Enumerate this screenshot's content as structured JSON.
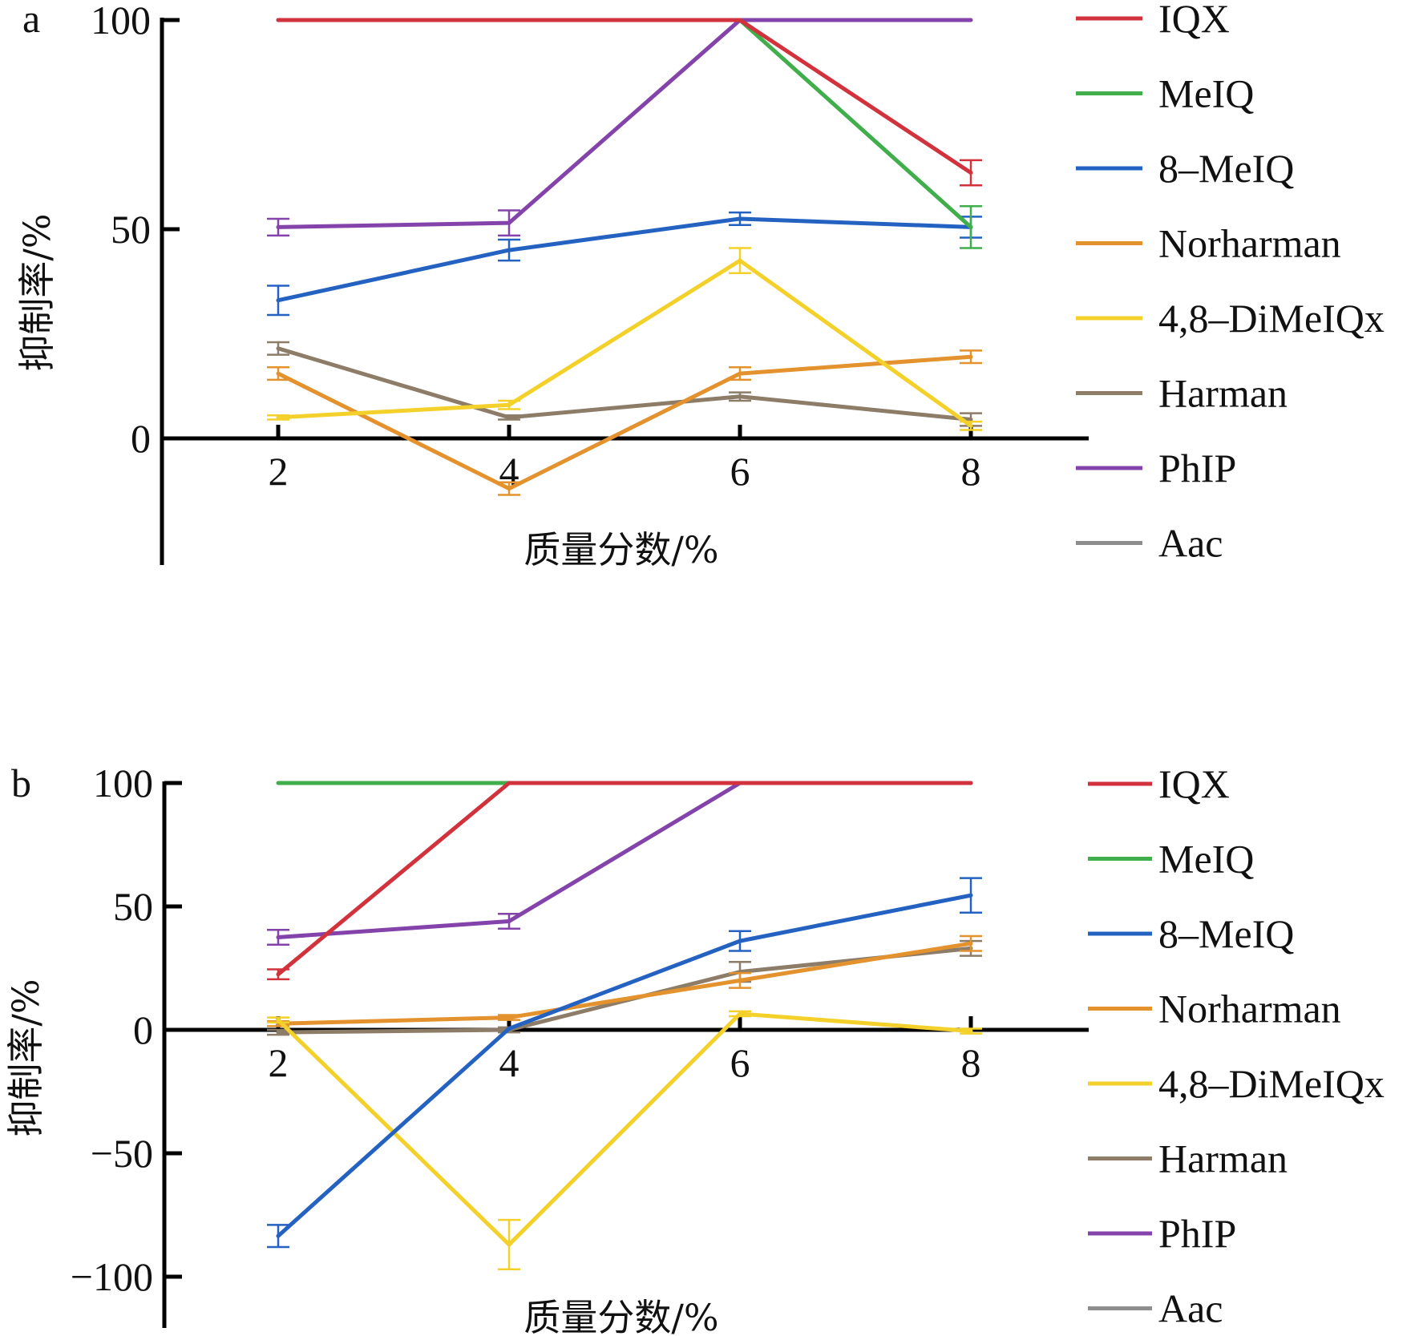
{
  "chart_data": [
    {
      "panel": "a",
      "type": "line",
      "xlabel": "质量分数/%",
      "ylabel": "抑制率/%",
      "x": [
        2,
        4,
        6,
        8
      ],
      "x_ticks": [
        "2",
        "4",
        "6",
        "8"
      ],
      "y_ticks": [
        {
          "value": 100,
          "label": "100"
        },
        {
          "value": 50,
          "label": "50"
        },
        {
          "value": 0,
          "label": "0"
        }
      ],
      "ylim": [
        -27,
        100
      ],
      "legend_position": "right",
      "grid": false,
      "series": [
        {
          "name": "IQX",
          "color": "#d2323c",
          "values": [
            100,
            100,
            100,
            63.5
          ],
          "errors": [
            0,
            0,
            0,
            3
          ]
        },
        {
          "name": "MeIQ",
          "color": "#3fae4b",
          "values": [
            100,
            100,
            100,
            50.5
          ],
          "errors": [
            0,
            0,
            0,
            5
          ]
        },
        {
          "name": "8–MeIQ",
          "color": "#2462c2",
          "values": [
            33,
            45,
            52.5,
            50.5
          ],
          "errors": [
            3.5,
            2.5,
            1.5,
            2.5
          ]
        },
        {
          "name": "Norharman",
          "color": "#e3922e",
          "values": [
            15.5,
            -12,
            15.5,
            19.5
          ],
          "errors": [
            1.5,
            1.5,
            1.5,
            1.5
          ]
        },
        {
          "name": "4,8–DiMeIQx",
          "color": "#f3d02a",
          "values": [
            5,
            8,
            42.5,
            3
          ],
          "errors": [
            0.5,
            1,
            3,
            1
          ]
        },
        {
          "name": "Harman",
          "color": "#8c7c68",
          "values": [
            21.5,
            5,
            10,
            4.5
          ],
          "errors": [
            1.5,
            0.5,
            1,
            1.5
          ]
        },
        {
          "name": "PhIP",
          "color": "#8443aa",
          "values": [
            50.5,
            51.5,
            100,
            100
          ],
          "errors": [
            2,
            3,
            0,
            0
          ]
        },
        {
          "name": "Aac",
          "color": "#8e8e8e",
          "values": [
            null,
            null,
            null,
            null
          ],
          "errors": [
            0,
            0,
            0,
            0
          ]
        }
      ],
      "panel_label": "a"
    },
    {
      "panel": "b",
      "type": "line",
      "xlabel": "质量分数/%",
      "ylabel": "抑制率/%",
      "x": [
        2,
        4,
        6,
        8
      ],
      "x_ticks": [
        "2",
        "4",
        "6",
        "8"
      ],
      "y_ticks": [
        {
          "value": 100,
          "label": "100"
        },
        {
          "value": 50,
          "label": "50"
        },
        {
          "value": 0,
          "label": "0"
        },
        {
          "value": -50,
          "label": "−50"
        },
        {
          "value": -100,
          "label": "−100"
        }
      ],
      "ylim": [
        -120,
        100
      ],
      "legend_position": "right",
      "grid": false,
      "series": [
        {
          "name": "IQX",
          "color": "#d2323c",
          "values": [
            22.5,
            100,
            100,
            100
          ],
          "errors": [
            2,
            0,
            0,
            0
          ]
        },
        {
          "name": "MeIQ",
          "color": "#3fae4b",
          "values": [
            100,
            100,
            100,
            100
          ],
          "errors": [
            0,
            0,
            0,
            0
          ]
        },
        {
          "name": "8–MeIQ",
          "color": "#2462c2",
          "values": [
            -83.5,
            0.5,
            36,
            54.5
          ],
          "errors": [
            4.5,
            0,
            4,
            7
          ]
        },
        {
          "name": "Norharman",
          "color": "#e3922e",
          "values": [
            2.5,
            5,
            20,
            35
          ],
          "errors": [
            1,
            1,
            3,
            3
          ]
        },
        {
          "name": "4,8–DiMeIQx",
          "color": "#f3d02a",
          "values": [
            4,
            -87,
            6.5,
            -0.5
          ],
          "errors": [
            1,
            10,
            1,
            1
          ]
        },
        {
          "name": "Harman",
          "color": "#8c7c68",
          "values": [
            -1,
            0,
            23.5,
            33
          ],
          "errors": [
            1,
            1,
            4,
            3
          ]
        },
        {
          "name": "PhIP",
          "color": "#8443aa",
          "values": [
            37.5,
            44,
            100,
            100
          ],
          "errors": [
            3,
            3,
            0,
            0
          ]
        },
        {
          "name": "Aac",
          "color": "#8e8e8e",
          "values": [
            null,
            null,
            null,
            null
          ],
          "errors": [
            0,
            0,
            0,
            0
          ]
        }
      ],
      "panel_label": "b"
    }
  ]
}
